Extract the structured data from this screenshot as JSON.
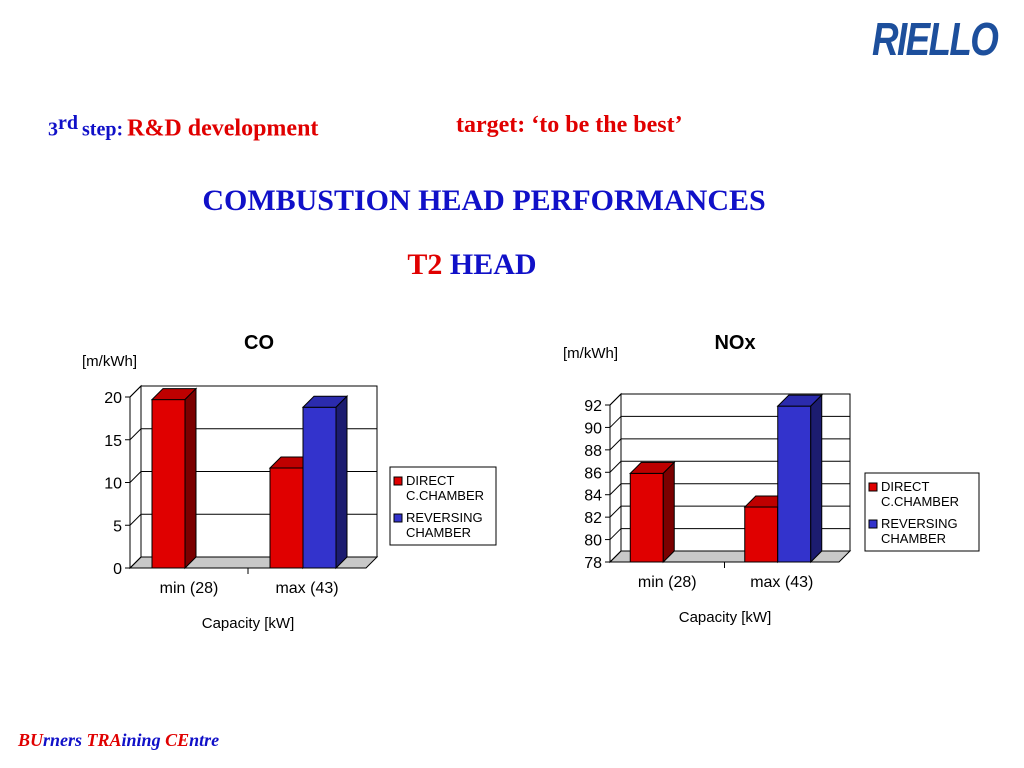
{
  "header": {
    "logo_text": "RIELLO",
    "step_num": "3",
    "step_sup": "rd",
    "step_word": "step:",
    "step_topic": "R&D development",
    "target": "target: ‘to be the best’"
  },
  "title": "COMBUSTION HEAD PERFORMANCES",
  "subtitle": {
    "part1": "T2",
    "part2": "HEAD"
  },
  "footer": {
    "p1": "BU",
    "p2": "rners ",
    "p3": "TRA",
    "p4": "ining ",
    "p5": "CE",
    "p6": "ntre"
  },
  "colors": {
    "direct": "#e00000",
    "reversing": "#3333cc",
    "title_blue": "#1010c8",
    "accent_red": "#e00000"
  },
  "chart_data": [
    {
      "type": "bar",
      "title": "CO",
      "ylabel": "[m/kWh]",
      "xlabel": "Capacity [kW]",
      "categories": [
        "min (28)",
        "max (43)"
      ],
      "series": [
        {
          "name": "DIRECT C.CHAMBER",
          "legend_lines": [
            "DIRECT",
            "C.CHAMBER"
          ],
          "values": [
            19.7,
            11.7
          ]
        },
        {
          "name": "REVERSING CHAMBER",
          "legend_lines": [
            "REVERSING",
            "CHAMBER"
          ],
          "values": [
            0,
            18.8
          ]
        }
      ],
      "ylim": [
        0,
        20
      ],
      "yticks": [
        0,
        5,
        10,
        15,
        20
      ],
      "grid": true,
      "legend": "right"
    },
    {
      "type": "bar",
      "title": "NOx",
      "ylabel": "[m/kWh]",
      "xlabel": "Capacity [kW]",
      "categories": [
        "min (28)",
        "max (43)"
      ],
      "series": [
        {
          "name": "DIRECT C.CHAMBER",
          "legend_lines": [
            "DIRECT",
            "C.CHAMBER"
          ],
          "values": [
            85.9,
            82.9
          ]
        },
        {
          "name": "REVERSING CHAMBER",
          "legend_lines": [
            "REVERSING",
            "CHAMBER"
          ],
          "values": [
            78,
            91.9
          ]
        }
      ],
      "ylim": [
        78,
        92
      ],
      "yticks": [
        78,
        80,
        82,
        84,
        86,
        88,
        90,
        92
      ],
      "grid": true,
      "legend": "right"
    }
  ]
}
